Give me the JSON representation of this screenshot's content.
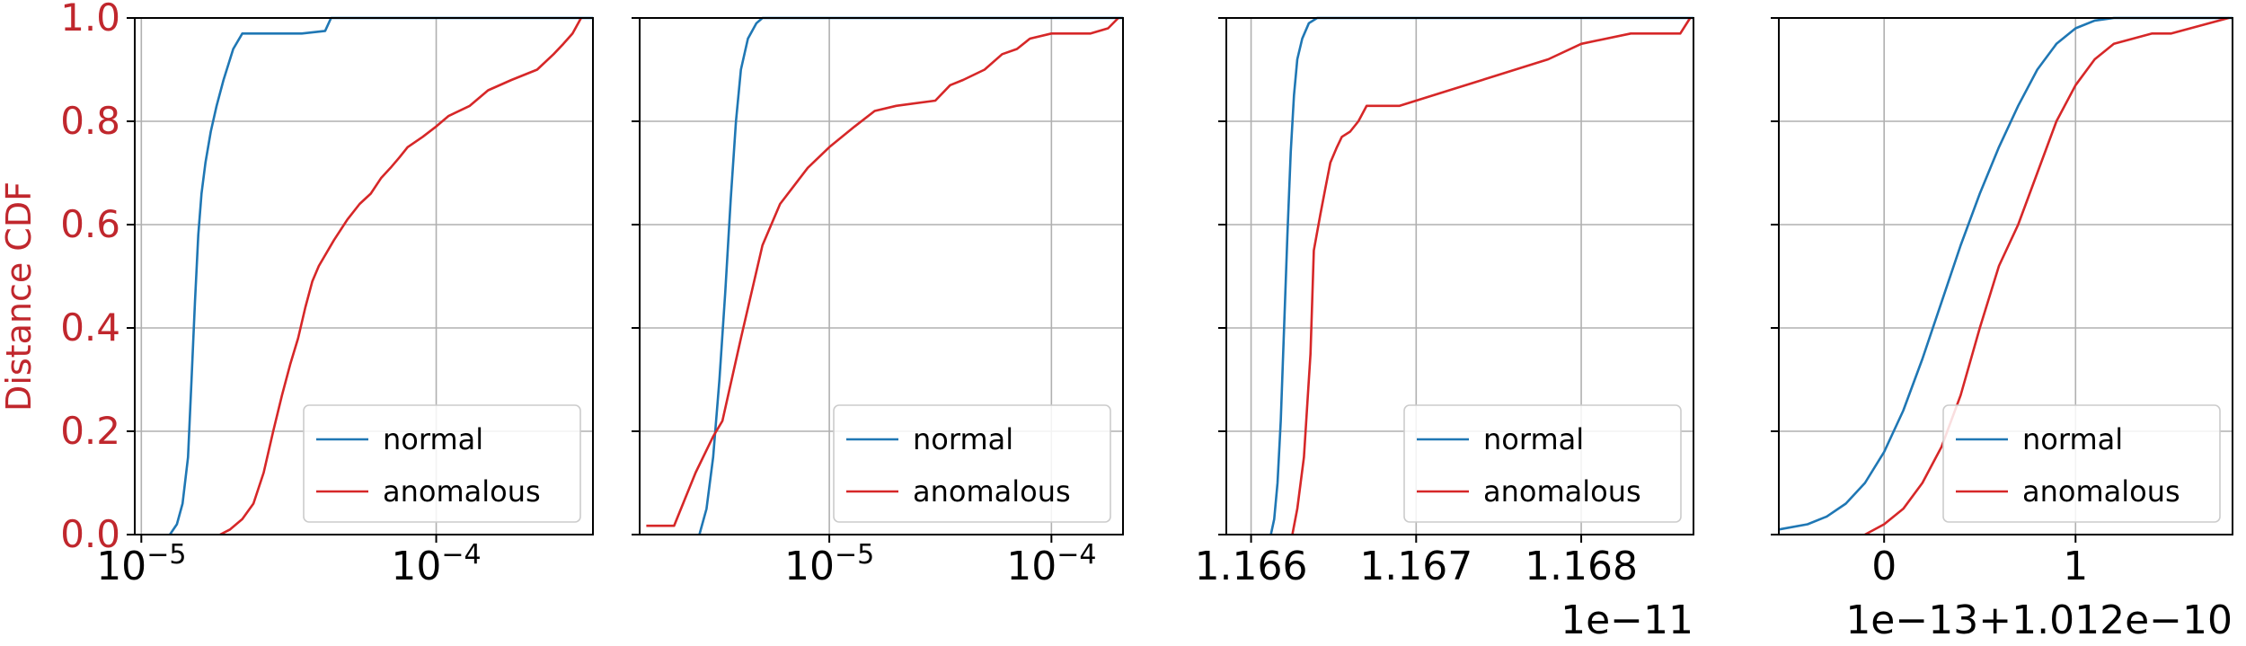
{
  "figure": {
    "ylabel": "Distance CDF",
    "ylabel_color": "#c0272d",
    "colors": {
      "normal": "#1f77b4",
      "anomalous": "#d62728",
      "grid": "#b0b0b0",
      "axis": "#000000"
    }
  },
  "chart_data": [
    {
      "type": "line",
      "xscale": "log",
      "xlim": [
        9.5e-06,
        0.00034
      ],
      "ylim": [
        0,
        1
      ],
      "xticks": [
        {
          "value": 1e-05,
          "base": "10",
          "exp": "−5"
        },
        {
          "value": 0.0001,
          "base": "10",
          "exp": "−4"
        }
      ],
      "yticks": [
        {
          "value": 0,
          "label": "0.0"
        },
        {
          "value": 0.2,
          "label": "0.2"
        },
        {
          "value": 0.4,
          "label": "0.4"
        },
        {
          "value": 0.6,
          "label": "0.6"
        },
        {
          "value": 0.8,
          "label": "0.8"
        },
        {
          "value": 1.0,
          "label": "1.0"
        }
      ],
      "ylabel": "Distance CDF",
      "offset_label": "",
      "grid": true,
      "legend": "lower-right",
      "series": [
        {
          "name": "normal",
          "x": [
            1.25e-05,
            1.32e-05,
            1.38e-05,
            1.44e-05,
            1.48e-05,
            1.52e-05,
            1.56e-05,
            1.6e-05,
            1.65e-05,
            1.72e-05,
            1.8e-05,
            1.9e-05,
            2.05e-05,
            2.2e-05,
            2.5e-05,
            3.5e-05,
            4.2e-05,
            4.4e-05,
            0.00034
          ],
          "y": [
            0.0,
            0.02,
            0.06,
            0.15,
            0.3,
            0.45,
            0.58,
            0.66,
            0.72,
            0.78,
            0.83,
            0.88,
            0.94,
            0.97,
            0.97,
            0.97,
            0.975,
            1.0,
            1.0
          ]
        },
        {
          "name": "anomalous",
          "x": [
            1.85e-05,
            2e-05,
            2.2e-05,
            2.4e-05,
            2.6e-05,
            2.8e-05,
            3e-05,
            3.2e-05,
            3.4e-05,
            3.6e-05,
            3.8e-05,
            4e-05,
            4.5e-05,
            5e-05,
            5.5e-05,
            6e-05,
            6.5e-05,
            7e-05,
            7.5e-05,
            8e-05,
            9e-05,
            0.0001,
            0.00011,
            0.00013,
            0.00015,
            0.00018,
            0.00022,
            0.00025,
            0.00027,
            0.00029,
            0.00031
          ],
          "y": [
            0.0,
            0.01,
            0.03,
            0.06,
            0.12,
            0.2,
            0.27,
            0.33,
            0.38,
            0.44,
            0.49,
            0.52,
            0.57,
            0.61,
            0.64,
            0.66,
            0.69,
            0.71,
            0.73,
            0.75,
            0.77,
            0.79,
            0.81,
            0.83,
            0.86,
            0.88,
            0.9,
            0.93,
            0.95,
            0.97,
            1.0
          ]
        }
      ]
    },
    {
      "type": "line",
      "xscale": "log",
      "xlim": [
        1.4e-06,
        0.00021
      ],
      "ylim": [
        0,
        1
      ],
      "xticks": [
        {
          "value": 1e-05,
          "base": "10",
          "exp": "−5"
        },
        {
          "value": 0.0001,
          "base": "10",
          "exp": "−4"
        }
      ],
      "yticks": [
        {
          "value": 0,
          "label": ""
        },
        {
          "value": 0.2,
          "label": ""
        },
        {
          "value": 0.4,
          "label": ""
        },
        {
          "value": 0.6,
          "label": ""
        },
        {
          "value": 0.8,
          "label": ""
        },
        {
          "value": 1.0,
          "label": ""
        }
      ],
      "offset_label": "",
      "grid": true,
      "legend": "lower-right",
      "series": [
        {
          "name": "normal",
          "x": [
            2.6e-06,
            2.8e-06,
            3e-06,
            3.2e-06,
            3.4e-06,
            3.6e-06,
            3.8e-06,
            4e-06,
            4.3e-06,
            4.7e-06,
            5e-06,
            0.00021
          ],
          "y": [
            0.0,
            0.05,
            0.15,
            0.3,
            0.47,
            0.65,
            0.8,
            0.9,
            0.96,
            0.99,
            1.0,
            1.0
          ]
        },
        {
          "name": "anomalous",
          "x": [
            1.5e-06,
            1.8e-06,
            2e-06,
            2.5e-06,
            3e-06,
            3.3e-06,
            4e-06,
            5e-06,
            6e-06,
            8e-06,
            1e-05,
            1.3e-05,
            1.6e-05,
            2e-05,
            3e-05,
            3.5e-05,
            4e-05,
            5e-05,
            6e-05,
            7e-05,
            8e-05,
            0.0001,
            0.00015,
            0.00018,
            0.0002
          ],
          "y": [
            0.017,
            0.017,
            0.017,
            0.12,
            0.19,
            0.22,
            0.38,
            0.56,
            0.64,
            0.71,
            0.75,
            0.79,
            0.82,
            0.83,
            0.84,
            0.87,
            0.88,
            0.9,
            0.93,
            0.94,
            0.96,
            0.97,
            0.97,
            0.98,
            1.0
          ]
        }
      ]
    },
    {
      "type": "line",
      "xscale": "linear",
      "xlim": [
        1.16585,
        1.16868
      ],
      "ylim": [
        0,
        1
      ],
      "xticks": [
        {
          "value": 1.166,
          "label": "1.166"
        },
        {
          "value": 1.167,
          "label": "1.167"
        },
        {
          "value": 1.168,
          "label": "1.168"
        }
      ],
      "yticks": [
        {
          "value": 0,
          "label": ""
        },
        {
          "value": 0.2,
          "label": ""
        },
        {
          "value": 0.4,
          "label": ""
        },
        {
          "value": 0.6,
          "label": ""
        },
        {
          "value": 0.8,
          "label": ""
        },
        {
          "value": 1.0,
          "label": ""
        }
      ],
      "offset_label": "1e−11",
      "grid": true,
      "legend": "lower-right",
      "series": [
        {
          "name": "normal",
          "x": [
            1.16612,
            1.16614,
            1.16616,
            1.16618,
            1.1662,
            1.16622,
            1.16624,
            1.16626,
            1.16628,
            1.16631,
            1.16635,
            1.1664,
            1.16868
          ],
          "y": [
            0.0,
            0.03,
            0.1,
            0.22,
            0.4,
            0.58,
            0.74,
            0.85,
            0.92,
            0.96,
            0.99,
            1.0,
            1.0
          ]
        },
        {
          "name": "anomalous",
          "x": [
            1.16625,
            1.16628,
            1.16632,
            1.16636,
            1.16638,
            1.16642,
            1.16645,
            1.16648,
            1.16652,
            1.16655,
            1.1666,
            1.16665,
            1.1667,
            1.1669,
            1.1672,
            1.1675,
            1.1678,
            1.168,
            1.1683,
            1.1686,
            1.16866
          ],
          "y": [
            0.0,
            0.05,
            0.15,
            0.35,
            0.55,
            0.62,
            0.67,
            0.72,
            0.75,
            0.77,
            0.78,
            0.8,
            0.83,
            0.83,
            0.86,
            0.89,
            0.92,
            0.95,
            0.97,
            0.97,
            1.0
          ]
        }
      ]
    },
    {
      "type": "line",
      "xscale": "linear",
      "xlim": [
        -0.55,
        1.82
      ],
      "ylim": [
        0,
        1
      ],
      "xticks": [
        {
          "value": 0,
          "label": "0"
        },
        {
          "value": 1,
          "label": "1"
        }
      ],
      "yticks": [
        {
          "value": 0,
          "label": ""
        },
        {
          "value": 0.2,
          "label": ""
        },
        {
          "value": 0.4,
          "label": ""
        },
        {
          "value": 0.6,
          "label": ""
        },
        {
          "value": 0.8,
          "label": ""
        },
        {
          "value": 1.0,
          "label": ""
        }
      ],
      "offset_label": "1e−13+1.012e−10",
      "grid": true,
      "legend": "lower-right",
      "series": [
        {
          "name": "normal",
          "x": [
            -0.55,
            -0.4,
            -0.3,
            -0.2,
            -0.1,
            0.0,
            0.1,
            0.2,
            0.3,
            0.4,
            0.5,
            0.6,
            0.7,
            0.8,
            0.9,
            1.0,
            1.1,
            1.2,
            1.3,
            1.82
          ],
          "y": [
            0.01,
            0.02,
            0.035,
            0.06,
            0.1,
            0.16,
            0.24,
            0.34,
            0.45,
            0.56,
            0.66,
            0.75,
            0.83,
            0.9,
            0.95,
            0.98,
            0.995,
            1.0,
            1.0,
            1.0
          ]
        },
        {
          "name": "anomalous",
          "x": [
            -0.1,
            0.0,
            0.1,
            0.2,
            0.3,
            0.4,
            0.5,
            0.6,
            0.7,
            0.8,
            0.9,
            1.0,
            1.1,
            1.2,
            1.3,
            1.4,
            1.5,
            1.6,
            1.7,
            1.8
          ],
          "y": [
            0.0,
            0.02,
            0.05,
            0.1,
            0.17,
            0.27,
            0.4,
            0.52,
            0.6,
            0.7,
            0.8,
            0.87,
            0.92,
            0.95,
            0.96,
            0.97,
            0.97,
            0.98,
            0.99,
            1.0
          ]
        }
      ]
    }
  ]
}
